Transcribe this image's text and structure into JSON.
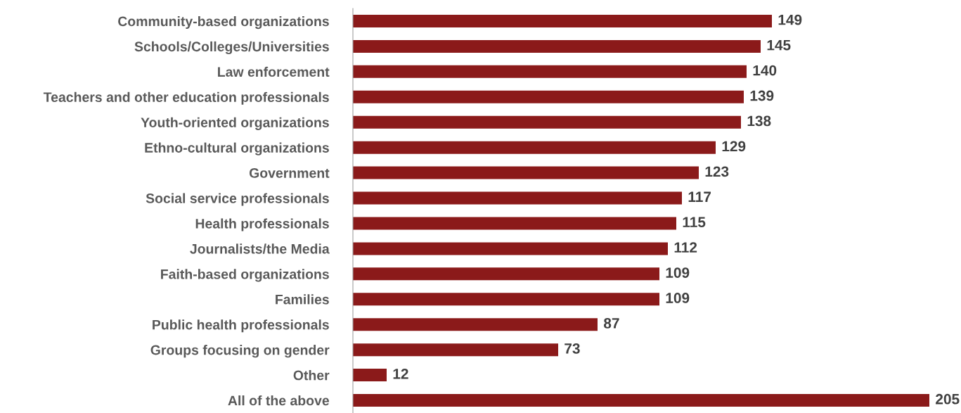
{
  "chart_data": {
    "type": "bar",
    "orientation": "horizontal",
    "categories": [
      "Community-based organizations",
      "Schools/Colleges/Universities",
      "Law enforcement",
      "Teachers and other education professionals",
      "Youth-oriented organizations",
      "Ethno-cultural organizations",
      "Government",
      "Social service professionals",
      "Health professionals",
      "Journalists/the Media",
      "Faith-based organizations",
      "Families",
      "Public health professionals",
      "Groups focusing on gender",
      "Other",
      "All of the above"
    ],
    "values": [
      149,
      145,
      140,
      139,
      138,
      129,
      123,
      117,
      115,
      112,
      109,
      109,
      87,
      73,
      12,
      205
    ],
    "color": "#8b1a1a",
    "data_labels": true,
    "grid": false,
    "legend": false
  }
}
